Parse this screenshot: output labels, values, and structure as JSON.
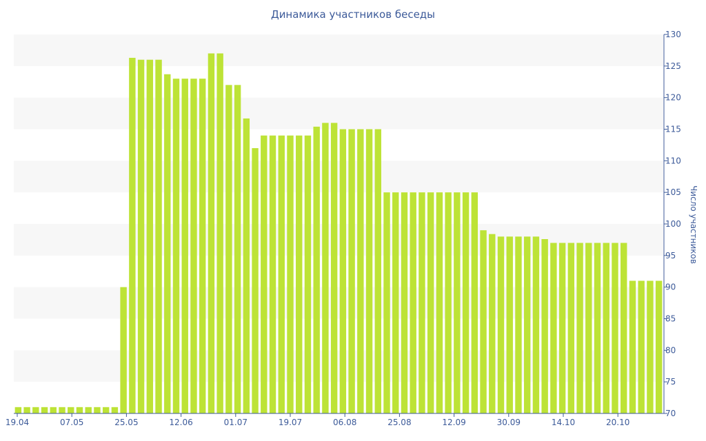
{
  "chart_data": {
    "type": "bar",
    "title": "Динамика участников беседы",
    "ylabel": "Число участников",
    "xlabel": "",
    "ylim": [
      70,
      130
    ],
    "y_ticks": [
      70,
      75,
      80,
      85,
      90,
      95,
      100,
      105,
      110,
      115,
      120,
      125,
      130
    ],
    "x_tick_labels": [
      "19.04",
      "07.05",
      "25.05",
      "12.06",
      "01.07",
      "19.07",
      "06.08",
      "25.08",
      "12.09",
      "30.09",
      "14.10",
      "20.10"
    ],
    "grid": "alternating horizontal bands",
    "legend": "none",
    "bar_color": "#bde336",
    "band_color": "#f7f7f7",
    "text_color": "#3c5a99",
    "values": [
      71,
      71,
      71,
      71,
      71,
      71,
      71,
      71,
      71,
      71,
      71,
      71,
      90,
      126.3,
      126,
      126,
      126,
      123.7,
      123,
      123,
      123,
      123,
      127,
      127,
      122,
      122,
      116.7,
      112,
      114,
      114,
      114,
      114,
      114,
      114,
      115.4,
      116,
      116,
      115,
      115,
      115,
      115,
      115,
      105,
      105,
      105,
      105,
      105,
      105,
      105,
      105,
      105,
      105,
      105,
      99,
      98.4,
      98,
      98,
      98,
      98,
      98,
      97.6,
      97,
      97,
      97,
      97,
      97,
      97,
      97,
      97,
      97,
      91,
      91,
      91,
      91
    ]
  }
}
